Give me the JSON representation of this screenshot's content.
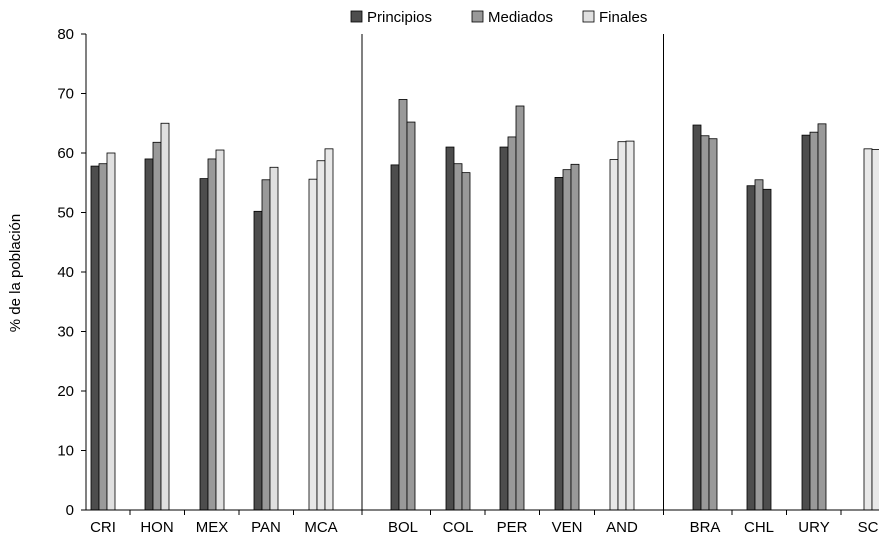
{
  "chart_data": {
    "type": "bar",
    "title": "",
    "ylabel": "% de la población",
    "xlabel": "",
    "ylim": [
      0,
      80
    ],
    "yticks": [
      0,
      10,
      20,
      30,
      40,
      50,
      60,
      70,
      80
    ],
    "grid": false,
    "legend_position": "top",
    "series_legend": [
      {
        "name": "Principios",
        "color": "#4d4d4d"
      },
      {
        "name": "Mediados",
        "color": "#999999"
      },
      {
        "name": "Finales",
        "color": "#e0e0e0"
      }
    ],
    "categories": [
      "CRI",
      "HON",
      "MEX",
      "PAN",
      "MCA",
      "BOL",
      "COL",
      "PER",
      "VEN",
      "AND",
      "BRA",
      "CHL",
      "URY",
      "SC"
    ],
    "values": [
      [
        57.8,
        58.2,
        60.0
      ],
      [
        59.0,
        61.8,
        65.0
      ],
      [
        55.7,
        59.0,
        60.5
      ],
      [
        50.2,
        55.5,
        57.6
      ],
      [
        55.6,
        58.7,
        60.7
      ],
      [
        58.0,
        69.0,
        65.2
      ],
      [
        61.0,
        58.2,
        56.7
      ],
      [
        61.0,
        62.7,
        67.9
      ],
      [
        55.9,
        57.2,
        58.1
      ],
      [
        58.9,
        61.9,
        62.0
      ],
      [
        64.7,
        62.9,
        62.4
      ],
      [
        54.5,
        55.5,
        53.9
      ],
      [
        63.0,
        63.5,
        64.9
      ],
      [
        null,
        60.7,
        60.6
      ]
    ],
    "bar_colors": [
      [
        "#4d4d4d",
        "#999999",
        "#e0e0e0"
      ],
      [
        "#4d4d4d",
        "#999999",
        "#e0e0e0"
      ],
      [
        "#4d4d4d",
        "#999999",
        "#e0e0e0"
      ],
      [
        "#4d4d4d",
        "#999999",
        "#e0e0e0"
      ],
      [
        "#e8e8e8",
        "#e8e8e8",
        "#e8e8e8"
      ],
      [
        "#4d4d4d",
        "#999999",
        "#999999"
      ],
      [
        "#4d4d4d",
        "#999999",
        "#999999"
      ],
      [
        "#4d4d4d",
        "#999999",
        "#999999"
      ],
      [
        "#4d4d4d",
        "#999999",
        "#999999"
      ],
      [
        "#e8e8e8",
        "#e8e8e8",
        "#e8e8e8"
      ],
      [
        "#4d4d4d",
        "#999999",
        "#999999"
      ],
      [
        "#4d4d4d",
        "#999999",
        "#4d4d4d"
      ],
      [
        "#4d4d4d",
        "#999999",
        "#999999"
      ],
      [
        "#e8e8e8",
        "#e8e8e8",
        "#e8e8e8"
      ]
    ],
    "region_dividers_after": [
      "MCA",
      "AND"
    ]
  }
}
